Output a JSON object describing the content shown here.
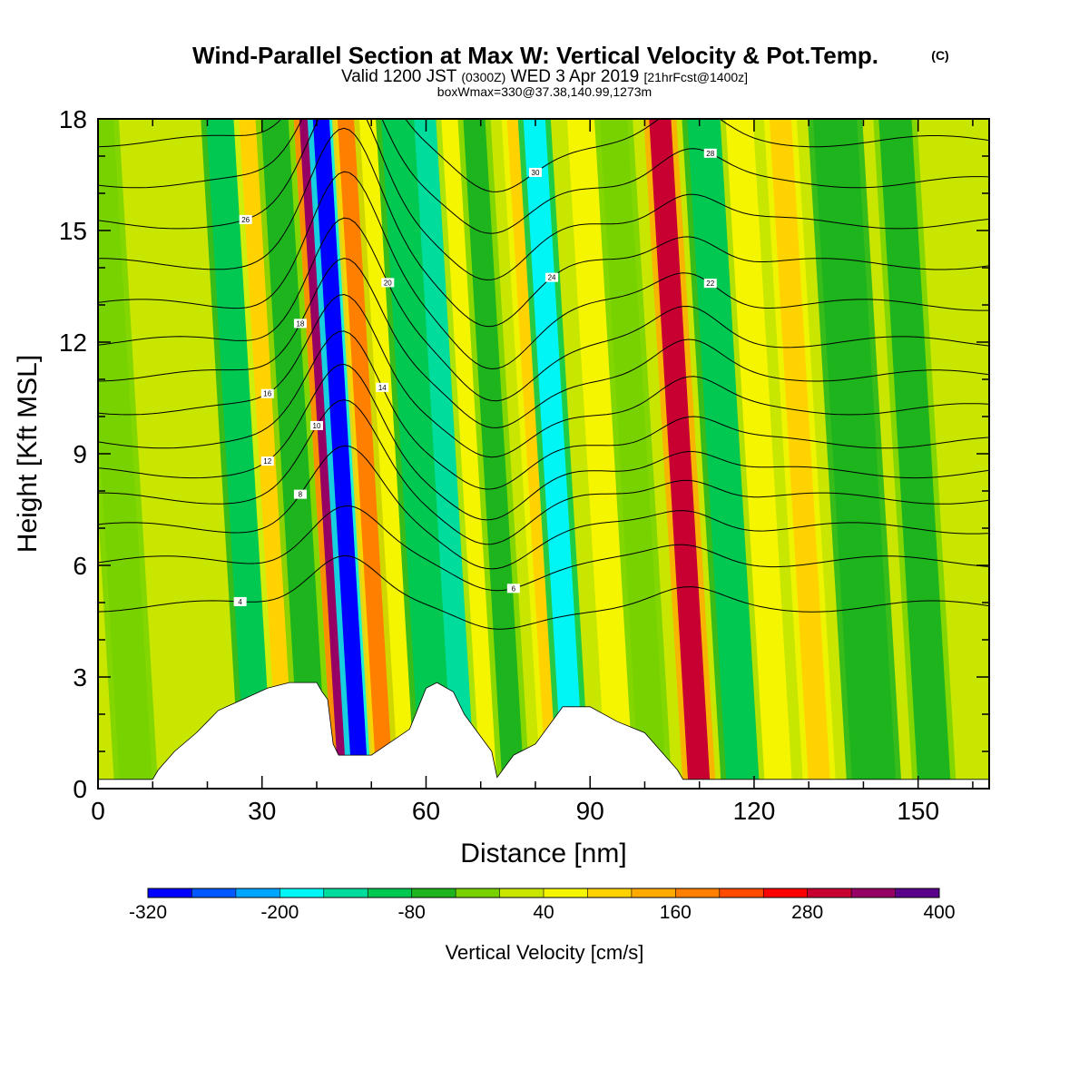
{
  "header": {
    "title": "Wind-Parallel Section at Max W: Vertical Velocity & Pot.Temp.",
    "copyright": "(C)",
    "valid_prefix": "Valid 1200 JST",
    "valid_z": "(0300Z)",
    "valid_date": "WED 3 Apr 2019",
    "forecast": "[21hrFcst@1400z]",
    "box_info": "boxWmax=330@37.38,140.99,1273m"
  },
  "chart_data": {
    "type": "heatmap",
    "xlabel": "Distance [nm]",
    "ylabel": "Height [Kft MSL]",
    "xlim": [
      0,
      163
    ],
    "ylim": [
      0,
      18
    ],
    "x_ticks": [
      0,
      30,
      60,
      90,
      120,
      150
    ],
    "y_ticks": [
      0,
      3,
      6,
      9,
      12,
      15,
      18
    ],
    "colorbar": {
      "label": "Vertical Velocity [cm/s]",
      "range": [
        -320,
        400
      ],
      "tick_labels": [
        "-320",
        "-200",
        "-80",
        "40",
        "160",
        "280",
        "400"
      ],
      "colors": [
        "#0000ff",
        "#0059ff",
        "#00a5ff",
        "#00f5f5",
        "#00dc9c",
        "#00c850",
        "#1eb41e",
        "#78d200",
        "#c8e600",
        "#f5f500",
        "#ffd200",
        "#ffaa00",
        "#ff7f00",
        "#ff4b00",
        "#ff0000",
        "#c80032",
        "#960064",
        "#5a008c"
      ]
    },
    "background_value": 30,
    "velocity_bands": [
      {
        "x": 4,
        "w": 6,
        "value": -20
      },
      {
        "x": 27,
        "w": 7,
        "value": -100
      },
      {
        "x": 33,
        "w": 4,
        "value": 80
      },
      {
        "x": 37,
        "w": 5,
        "value": -60
      },
      {
        "x": 44,
        "w": 3,
        "value": 330
      },
      {
        "x": 46.5,
        "w": 3,
        "value": -300
      },
      {
        "x": 51,
        "w": 4,
        "value": 170
      },
      {
        "x": 55,
        "w": 3,
        "value": 60
      },
      {
        "x": 59,
        "w": 6,
        "value": -100
      },
      {
        "x": 65,
        "w": 4,
        "value": -160
      },
      {
        "x": 70,
        "w": 4,
        "value": 60
      },
      {
        "x": 74,
        "w": 4,
        "value": -60
      },
      {
        "x": 82,
        "w": 3,
        "value": 100
      },
      {
        "x": 85,
        "w": 4,
        "value": -180
      },
      {
        "x": 93,
        "w": 5,
        "value": 60
      },
      {
        "x": 99,
        "w": 5,
        "value": -40
      },
      {
        "x": 108,
        "w": 4,
        "value": 290
      },
      {
        "x": 115,
        "w": 6,
        "value": -100
      },
      {
        "x": 122,
        "w": 5,
        "value": 40
      },
      {
        "x": 130,
        "w": 4,
        "value": 80
      },
      {
        "x": 138,
        "w": 8,
        "value": -80
      },
      {
        "x": 150,
        "w": 6,
        "value": -60
      }
    ],
    "terrain": [
      [
        0,
        0.25
      ],
      [
        10,
        0.25
      ],
      [
        11,
        0.5
      ],
      [
        14,
        1
      ],
      [
        18,
        1.5
      ],
      [
        20,
        1.8
      ],
      [
        22,
        2.1
      ],
      [
        25,
        2.3
      ],
      [
        28,
        2.5
      ],
      [
        31,
        2.7
      ],
      [
        35,
        2.85
      ],
      [
        40,
        2.85
      ],
      [
        41,
        2.6
      ],
      [
        42,
        2.4
      ],
      [
        43,
        1.2
      ],
      [
        44,
        0.9
      ],
      [
        50,
        0.9
      ],
      [
        52,
        1.1
      ],
      [
        57,
        1.6
      ],
      [
        60,
        2.7
      ],
      [
        62,
        2.85
      ],
      [
        65,
        2.6
      ],
      [
        67,
        2.0
      ],
      [
        70,
        1.4
      ],
      [
        72,
        1.0
      ],
      [
        73,
        0.3
      ],
      [
        74,
        0.5
      ],
      [
        76,
        0.9
      ],
      [
        80,
        1.2
      ],
      [
        85,
        2.2
      ],
      [
        90,
        2.2
      ],
      [
        95,
        1.8
      ],
      [
        100,
        1.5
      ],
      [
        103,
        1.0
      ],
      [
        106,
        0.5
      ],
      [
        107,
        0.25
      ],
      [
        163,
        0.25
      ]
    ],
    "isentropes": [
      {
        "label": "4",
        "h": 4.9,
        "peak": 1.5,
        "label_x": 26
      },
      {
        "label": "6",
        "h": 6.1,
        "peak": 1.5,
        "label_x": 76
      },
      {
        "label": "8",
        "h": 7.0,
        "peak": 2.1,
        "label_x": 37
      },
      {
        "label": "10",
        "h": 7.8,
        "peak": 2.5,
        "label_x": 40
      },
      {
        "label": "12",
        "h": 8.5,
        "peak": 2.8,
        "label_x": 31
      },
      {
        "label": "14",
        "h": 9.3,
        "peak": 3.0,
        "label_x": 52
      },
      {
        "label": "16",
        "h": 10.2,
        "peak": 3.2,
        "label_x": 31
      },
      {
        "label": "18",
        "h": 11.1,
        "peak": 3.3,
        "label_x": 37
      },
      {
        "label": "20",
        "h": 12.0,
        "peak": 3.4,
        "label_x": 53
      },
      {
        "label": "22",
        "h": 13.0,
        "peak": 3.5,
        "label_x": 112
      },
      {
        "label": "24",
        "h": 14.1,
        "peak": 3.5,
        "label_x": 83
      },
      {
        "label": "26",
        "h": 15.2,
        "peak": 3.5,
        "label_x": 27
      },
      {
        "label": "28",
        "h": 16.3,
        "peak": 3.4,
        "label_x": 112
      },
      {
        "label": "30",
        "h": 17.4,
        "peak": 3.2,
        "label_x": 80
      }
    ]
  }
}
